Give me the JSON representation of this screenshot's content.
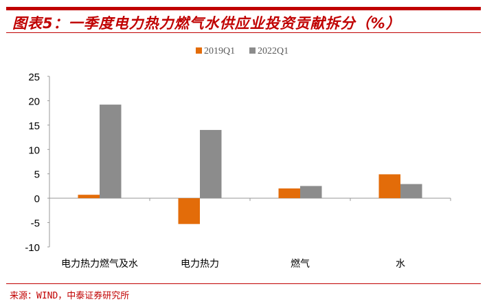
{
  "title": "图表5：一季度电力热力燃气水供应业投资贡献拆分（%）",
  "source": "来源：WIND，中泰证券研究所",
  "chart_data": {
    "type": "bar",
    "title": "图表5：一季度电力热力燃气水供应业投资贡献拆分（%）",
    "categories": [
      "电力热力燃气及水",
      "电力热力",
      "燃气",
      "水"
    ],
    "series": [
      {
        "name": "2019Q1",
        "color": "#e36c09",
        "values": [
          0.7,
          -5.3,
          2.0,
          4.9
        ]
      },
      {
        "name": "2022Q1",
        "color": "#8c8c8c",
        "values": [
          19.2,
          14.0,
          2.5,
          2.9
        ]
      }
    ],
    "ylim": [
      -10,
      25
    ],
    "yticks": [
      -10,
      -5,
      0,
      5,
      10,
      15,
      20,
      25
    ],
    "legend": "top-center",
    "grid": false
  }
}
